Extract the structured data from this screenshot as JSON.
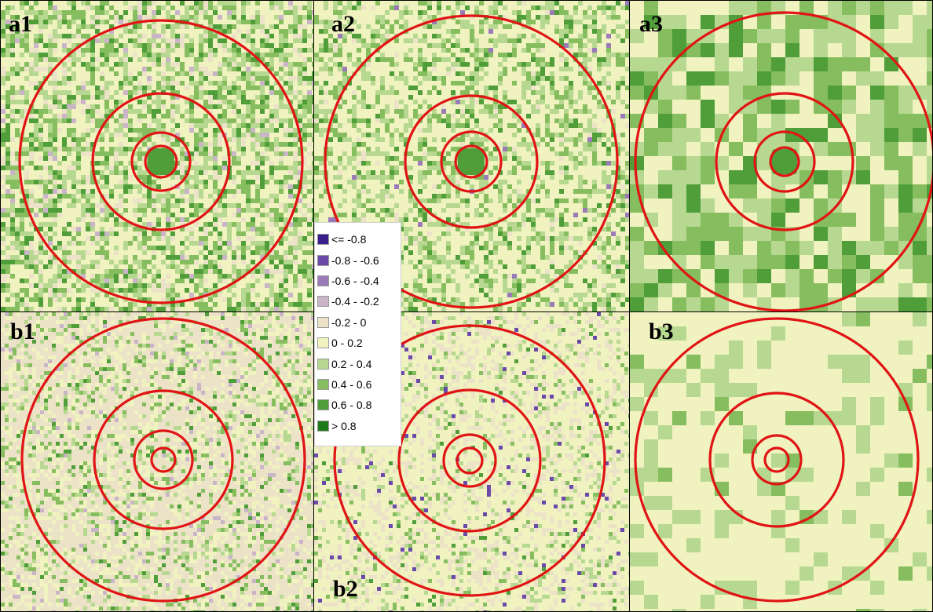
{
  "panels": [
    {
      "id": "a1",
      "label": "a1",
      "style": "dense-urban-green"
    },
    {
      "id": "a2",
      "label": "a2",
      "style": "medium-urban-green"
    },
    {
      "id": "a3",
      "label": "a3",
      "style": "coarse-blocky-green"
    },
    {
      "id": "b1",
      "label": "b1",
      "style": "street-grid"
    },
    {
      "id": "b2",
      "label": "b2",
      "style": "street-grid-light"
    },
    {
      "id": "b3",
      "label": "b3",
      "style": "coarse-blocky-light"
    }
  ],
  "legend": {
    "items": [
      {
        "label": "<= -0.8",
        "color": "#3a1e8c"
      },
      {
        "label": "-0.8 - -0.6",
        "color": "#6a4aa8"
      },
      {
        "label": "-0.6 - -0.4",
        "color": "#9a7bb8"
      },
      {
        "label": "-0.4 - -0.2",
        "color": "#c9b4c8"
      },
      {
        "label": "-0.2 - 0",
        "color": "#ece2c8"
      },
      {
        "label": "0 - 0.2",
        "color": "#f0f2c0"
      },
      {
        "label": "0.2 - 0.4",
        "color": "#b7d890"
      },
      {
        "label": "0.4 - 0.6",
        "color": "#86bd5e"
      },
      {
        "label": "0.6 - 0.8",
        "color": "#4f9e3a"
      },
      {
        "label": "> 0.8",
        "color": "#1e7a18"
      }
    ]
  },
  "colors": {
    "ring": "#e01414",
    "grid_line": "#000000"
  }
}
